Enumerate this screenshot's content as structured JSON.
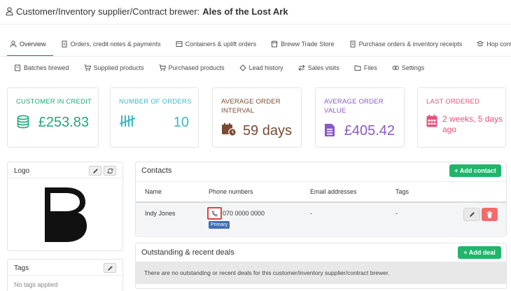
{
  "header": {
    "prefix": "Customer/Inventory supplier/Contract brewer:",
    "name": "Ales of the Lost Ark"
  },
  "tabs_row1": [
    {
      "label": "Overview",
      "icon": "user-icon"
    },
    {
      "label": "Orders, credit notes & payments",
      "icon": "document-icon"
    },
    {
      "label": "Containers & uplift orders",
      "icon": "box-icon"
    },
    {
      "label": "Breww Trade Store",
      "icon": "store-icon"
    },
    {
      "label": "Purchase orders & inventory receipts",
      "icon": "receipt-icon"
    },
    {
      "label": "Hop contracts",
      "icon": "hop-icon"
    }
  ],
  "tabs_row2": [
    {
      "label": "Batches brewed",
      "icon": "batch-icon"
    },
    {
      "label": "Supplied products",
      "icon": "cart-icon"
    },
    {
      "label": "Purchased products",
      "icon": "cart-icon"
    },
    {
      "label": "Lead history",
      "icon": "lead-icon"
    },
    {
      "label": "Sales visits",
      "icon": "visits-icon"
    },
    {
      "label": "Files",
      "icon": "folder-icon"
    },
    {
      "label": "Settings",
      "icon": "settings-icon"
    }
  ],
  "stats": {
    "credit": {
      "label": "CUSTOMER IN CREDIT",
      "value": "£253.83",
      "color": "#1fa77a",
      "icon": "coins-icon"
    },
    "orders": {
      "label": "NUMBER OF ORDERS",
      "value": "10",
      "color": "#3fb8c6",
      "icon": "tally-icon"
    },
    "interval": {
      "label1": "AVERAGE ORDER",
      "label2": "INTERVAL",
      "value": "59 days",
      "color": "#7a4b32",
      "icon": "calendar-clock-icon"
    },
    "avg_value": {
      "label1": "AVERAGE ORDER",
      "label2": "VALUE",
      "value": "£405.42",
      "color": "#8a59c6",
      "icon": "invoice-icon"
    },
    "last": {
      "label": "LAST ORDERED",
      "value1": "2 weeks, 5 days",
      "value2": "ago",
      "color": "#e8517a",
      "icon": "calendar-grid-icon"
    }
  },
  "logo_panel": {
    "title": "Logo",
    "logo_letter": "B"
  },
  "tags_panel": {
    "title": "Tags",
    "empty": "No tags applied"
  },
  "contacts": {
    "title": "Contacts",
    "add_label": "+ Add contact",
    "columns": [
      "Name",
      "Phone numbers",
      "Email addresses",
      "Tags"
    ],
    "rows": [
      {
        "name": "Indy Jones",
        "phone": "070 0000 0000",
        "phone_badge": "Primary",
        "email": "-",
        "tags": "-"
      }
    ]
  },
  "deals": {
    "title": "Outstanding & recent deals",
    "add_label": "+ Add deal",
    "empty": "There are no outstanding or recent deals for this customer/inventory supplier/contract brewer."
  },
  "colors": {
    "accent": "#1f6ba5",
    "green": "#1fb66b",
    "danger": "#f26b6b",
    "highlight": "#e0413a",
    "badge": "#3f6fb0"
  }
}
